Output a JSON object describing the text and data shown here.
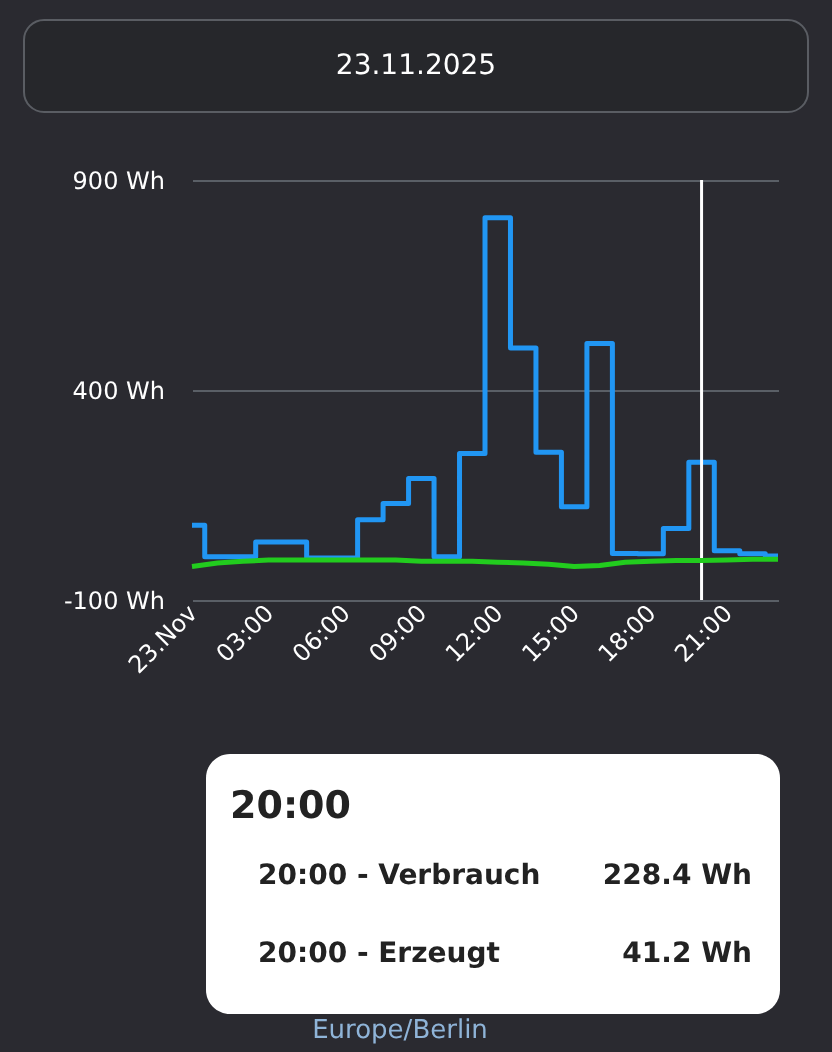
{
  "chart_data": {
    "type": "step",
    "title": "23.11.2025",
    "x": [
      0,
      1,
      2,
      3,
      4,
      5,
      6,
      7,
      8,
      9,
      10,
      11,
      12,
      13,
      14,
      15,
      16,
      17,
      18,
      19,
      20,
      21,
      22,
      23
    ],
    "series": [
      {
        "color": "#2196f3",
        "values": [
          78,
          3,
          3,
          38,
          38,
          0,
          0,
          91,
          130,
          189,
          3,
          249,
          810,
          500,
          252,
          122,
          511,
          11,
          10,
          70,
          228,
          17,
          10,
          5
        ]
      },
      {
        "type": "line",
        "color": "#22cc1e",
        "values": [
          -20,
          -12,
          -8,
          -5,
          -5,
          -5,
          -5,
          -5,
          -5,
          -8,
          -8,
          -8,
          -10,
          -12,
          -15,
          -20,
          -18,
          -10,
          -8,
          -6,
          -6,
          -5,
          -3,
          -3
        ]
      }
    ],
    "xlim": [
      0,
      23
    ],
    "xticks": [
      {
        "value": 0,
        "label": "23.Nov"
      },
      {
        "value": 3,
        "label": "03:00"
      },
      {
        "value": 6,
        "label": "06:00"
      },
      {
        "value": 9,
        "label": "09:00"
      },
      {
        "value": 12,
        "label": "12:00"
      },
      {
        "value": 15,
        "label": "15:00"
      },
      {
        "value": 18,
        "label": "18:00"
      },
      {
        "value": 21,
        "label": "21:00"
      }
    ],
    "ylim": [
      -100,
      900
    ],
    "yticks": [
      {
        "value": -100,
        "label": "-100 Wh"
      },
      {
        "value": 400,
        "label": "400 Wh"
      },
      {
        "value": 900,
        "label": "900 Wh"
      }
    ],
    "grid": "y",
    "ref_lines": [
      {
        "axis": "x",
        "value": 20,
        "color": "#ffffff"
      }
    ],
    "annotations": [
      "20:00",
      "20:00 - Verbrauch",
      "228.4 Wh",
      "20:00 - Erzeugt",
      "41.2 Wh",
      "Europe/Berlin"
    ]
  }
}
